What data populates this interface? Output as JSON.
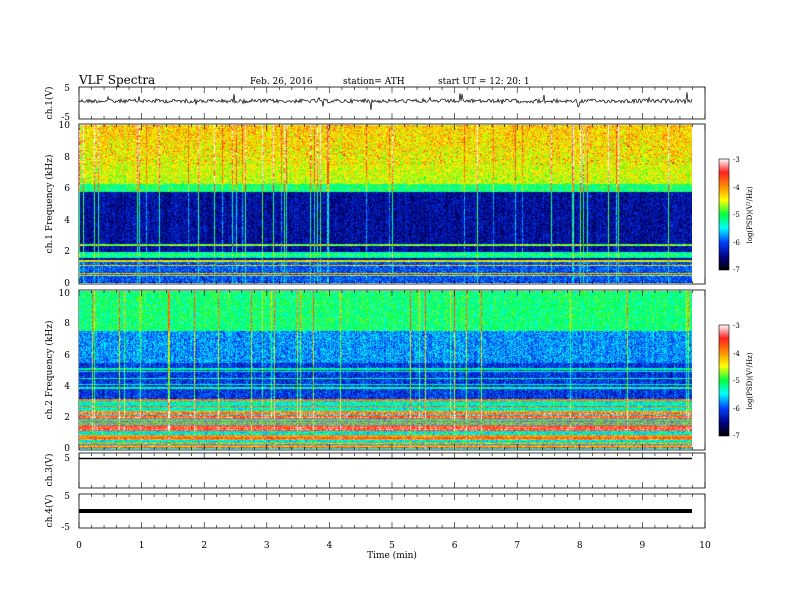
{
  "header": {
    "title": "VLF  Spectra",
    "date": "Feb. 26, 2016",
    "station": "station= ATH",
    "start": "start  UT  =    12: 20: 1"
  },
  "colorbar": {
    "label": "log(PSD)(V²/Hz)",
    "ticks": [
      "-3",
      "-4",
      "-5",
      "-6",
      "-7"
    ],
    "colors": [
      "#ffffff",
      "#ff2020",
      "#ff9000",
      "#ffff00",
      "#00ff40",
      "#00ffff",
      "#0040ff",
      "#000080",
      "#000000"
    ]
  },
  "chart_data": [
    {
      "type": "line",
      "id": "ch1-waveform",
      "ylabel": "ch.1(V)",
      "ylim": [
        -5,
        5
      ],
      "yticks": [
        "5",
        "-5"
      ],
      "xlim": [
        0,
        10
      ],
      "note": "noisy waveform around -1 V"
    },
    {
      "type": "heatmap",
      "id": "ch1-spectrogram",
      "ylabel": "ch.1 Frequency  (kHz)",
      "ylim": [
        0,
        10
      ],
      "yticks": [
        "10",
        "8",
        "6",
        "4",
        "2",
        "0"
      ],
      "xlim": [
        0,
        10
      ]
    },
    {
      "type": "heatmap",
      "id": "ch2-spectrogram",
      "ylabel": "ch.2 Frequency  (kHz)",
      "ylim": [
        0,
        10
      ],
      "yticks": [
        "10",
        "8",
        "6",
        "4",
        "2",
        "0"
      ],
      "xlim": [
        0,
        10
      ]
    },
    {
      "type": "line",
      "id": "ch3-waveform",
      "ylabel": "ch.3(V)",
      "ylim": [
        -5,
        5
      ],
      "yticks": [
        "5"
      ],
      "xlim": [
        0,
        10
      ]
    },
    {
      "type": "line",
      "id": "ch4-waveform",
      "ylabel": "ch.4(V)",
      "ylim": [
        -5,
        5
      ],
      "yticks": [
        "5",
        "-5"
      ],
      "xlim": [
        0,
        10
      ]
    }
  ],
  "xaxis": {
    "label": "Time  (min)",
    "ticks": [
      "0",
      "1",
      "2",
      "3",
      "4",
      "5",
      "6",
      "7",
      "8",
      "9",
      "10"
    ],
    "data_end_min": 9.8
  }
}
